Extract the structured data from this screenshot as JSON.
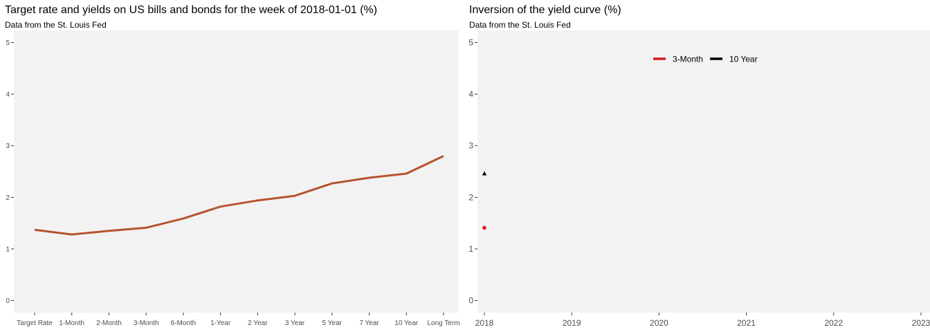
{
  "chart_data": [
    {
      "type": "line",
      "title": "Target rate and yields on US bills and bonds for the week of 2018-01-01 (%)",
      "subtitle": "Data from the St. Louis Fed",
      "xlabel": "",
      "ylabel": "",
      "categories": [
        "Target Rate",
        "1-Month",
        "2-Month",
        "3-Month",
        "6-Month",
        "1-Year",
        "2 Year",
        "3 Year",
        "5 Year",
        "7 Year",
        "10 Year",
        "Long Term"
      ],
      "values": [
        1.37,
        1.28,
        1.35,
        1.41,
        1.59,
        1.82,
        1.94,
        2.03,
        2.27,
        2.38,
        2.46,
        2.8
      ],
      "ylim": [
        0,
        5
      ],
      "yticks": [
        0,
        1,
        2,
        3,
        4,
        5
      ],
      "line_color": "#b5532e",
      "panel_background": "#f2f2f2",
      "grid": false
    },
    {
      "type": "scatter",
      "title": "Inversion of the yield curve (%)",
      "subtitle": "Data from the St. Louis Fed",
      "xlabel": "",
      "ylabel": "",
      "xlim": [
        2018,
        2023
      ],
      "xticks": [
        "2018",
        "2019",
        "2020",
        "2021",
        "2022",
        "2023"
      ],
      "ylim": [
        0,
        5
      ],
      "yticks": [
        0,
        1,
        2,
        3,
        4,
        5
      ],
      "series": [
        {
          "name": "3-Month",
          "color": "#d7191c",
          "marker": "circle",
          "points": [
            {
              "x": "2018-01-01",
              "y": 1.41
            }
          ]
        },
        {
          "name": "10 Year",
          "color": "#000000",
          "marker": "triangle",
          "points": [
            {
              "x": "2018-01-01",
              "y": 2.46
            }
          ]
        }
      ],
      "legend_position": "top-center",
      "panel_background": "#f2f2f2",
      "grid": false
    }
  ]
}
